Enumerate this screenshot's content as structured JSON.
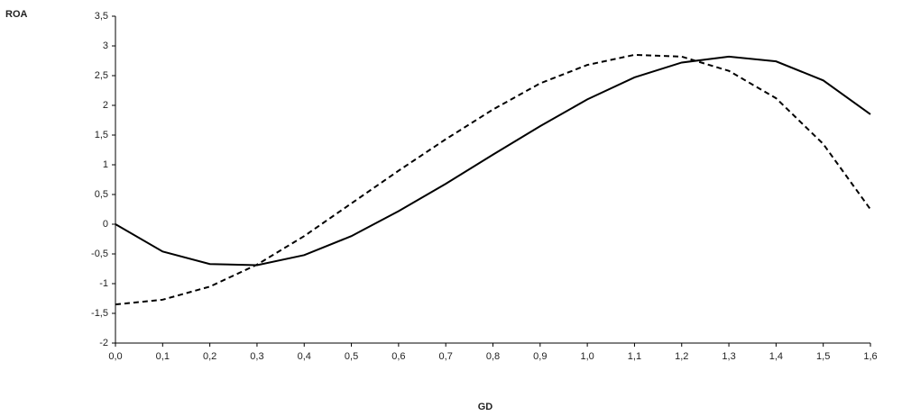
{
  "chart_data": {
    "type": "line",
    "y_label": "ROA",
    "x_label": "GD",
    "x": [
      0,
      0.1,
      0.2,
      0.3,
      0.4,
      0.5,
      0.6,
      0.7,
      0.8,
      0.9,
      1.0,
      1.1,
      1.2,
      1.3,
      1.4,
      1.5,
      1.6
    ],
    "series": [
      {
        "color": "#000000",
        "dash": "solid",
        "values": [
          0,
          -0.46,
          -0.67,
          -0.69,
          -0.52,
          -0.2,
          0.22,
          0.68,
          1.17,
          1.65,
          2.1,
          2.47,
          2.72,
          2.82,
          2.74,
          2.42,
          1.85
        ]
      },
      {
        "color": "#000000",
        "dash": "dashed",
        "values": [
          -1.35,
          -1.27,
          -1.05,
          -0.68,
          -0.2,
          0.35,
          0.9,
          1.43,
          1.93,
          2.37,
          2.68,
          2.85,
          2.82,
          2.58,
          2.12,
          1.35,
          0.25
        ]
      }
    ],
    "xlim": [
      0,
      1.6
    ],
    "xticks": [
      {
        "value": 0,
        "label": "0,0"
      },
      {
        "value": 0.1,
        "label": "0,1"
      },
      {
        "value": 0.2,
        "label": "0,2"
      },
      {
        "value": 0.3,
        "label": "0,3"
      },
      {
        "value": 0.4,
        "label": "0,4"
      },
      {
        "value": 0.5,
        "label": "0,5"
      },
      {
        "value": 0.6,
        "label": "0,6"
      },
      {
        "value": 0.7,
        "label": "0,7"
      },
      {
        "value": 0.8,
        "label": "0,8"
      },
      {
        "value": 0.9,
        "label": "0,9"
      },
      {
        "value": 1.0,
        "label": "1,0"
      },
      {
        "value": 1.1,
        "label": "1,1"
      },
      {
        "value": 1.2,
        "label": "1,2"
      },
      {
        "value": 1.3,
        "label": "1,3"
      },
      {
        "value": 1.4,
        "label": "1,4"
      },
      {
        "value": 1.5,
        "label": "1,5"
      },
      {
        "value": 1.6,
        "label": "1,6"
      }
    ],
    "ylim": [
      -2,
      3.5
    ],
    "yticks": [
      -2,
      {
        "value": -1.5,
        "label": "-1,5"
      },
      -1,
      {
        "value": -0.5,
        "label": "-0,5"
      },
      0,
      {
        "value": 0.5,
        "label": "0,5"
      },
      1,
      {
        "value": 1.5,
        "label": "1,5"
      },
      2,
      {
        "value": 2.5,
        "label": "2,5"
      },
      3,
      {
        "value": 3.5,
        "label": "3,5"
      }
    ]
  }
}
